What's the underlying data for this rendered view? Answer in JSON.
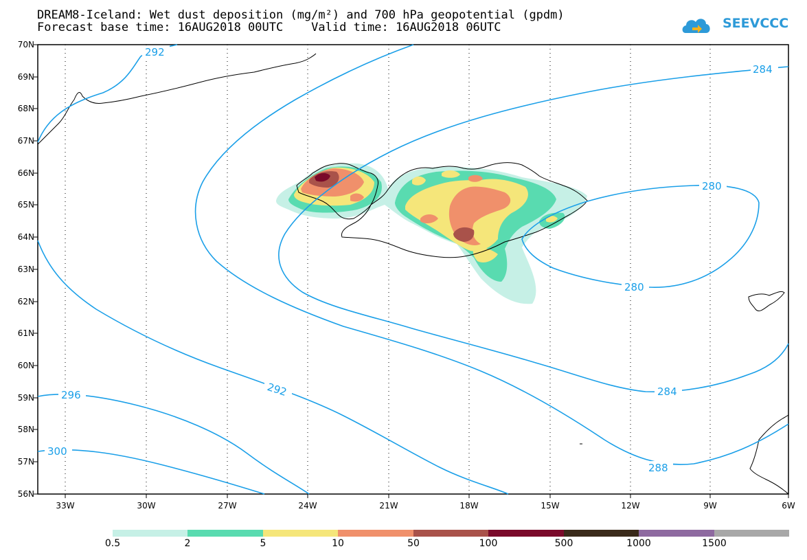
{
  "title_line1": "DREAM8-Iceland: Wet dust deposition (mg/m²) and 700 hPa geopotential (gpdm)",
  "title_line2": "Forecast base time: 16AUG2018 00UTC    Valid time: 16AUG2018 06UTC",
  "logo_text": "SEEVCCC",
  "lat_labels": [
    "70N",
    "69N",
    "68N",
    "67N",
    "66N",
    "65N",
    "64N",
    "63N",
    "62N",
    "61N",
    "60N",
    "59N",
    "58N",
    "57N",
    "56N"
  ],
  "lon_labels": [
    "33W",
    "30W",
    "27W",
    "24W",
    "21W",
    "18W",
    "15W",
    "12W",
    "9W",
    "6W"
  ],
  "contour_labels": [
    "292",
    "284",
    "280",
    "280",
    "292",
    "284",
    "296",
    "300",
    "288"
  ],
  "colorbar": {
    "labels": [
      "0.5",
      "2",
      "5",
      "10",
      "50",
      "100",
      "500",
      "1000",
      "1500"
    ],
    "colors": [
      "#c6f0e6",
      "#59dbb0",
      "#f5e67a",
      "#f0906b",
      "#a9524a",
      "#7a0a2a",
      "#3a2a1a",
      "#8e6aa0",
      "#a8a8a8"
    ]
  },
  "colors": {
    "contour": "#1a9fe8",
    "coast": "#000000"
  }
}
